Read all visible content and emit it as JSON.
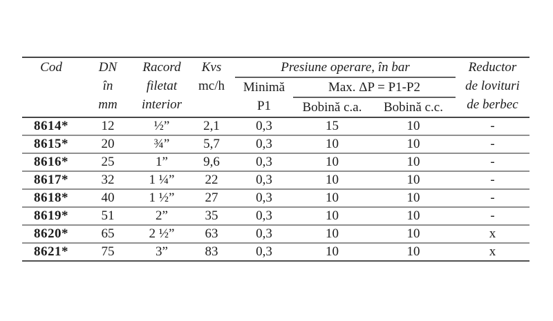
{
  "colors": {
    "text": "#1c1c1c",
    "rule_dark": "#454545",
    "rule_light": "#8f8f8f",
    "background": "#ffffff"
  },
  "table": {
    "header": {
      "cod": "Cod",
      "dn_lines": [
        "DN",
        "în",
        "mm"
      ],
      "racord_lines": [
        "Racord",
        "filetat",
        "interior"
      ],
      "kvs_line1": "Kvs",
      "kvs_line2": "mc/h",
      "presiune_group": "Presiune operare, în bar",
      "minima_line1": "Minimă",
      "minima_line2": "P1",
      "max_group": "Max. ΔP = P1-P2",
      "bobina_ca": "Bobină c.a.",
      "bobina_cc": "Bobină c.c.",
      "reductor_lines": [
        "Reductor",
        "de lovituri",
        "de berbec"
      ]
    },
    "rows": [
      {
        "cod": "8614*",
        "dn": "12",
        "racord": "½”",
        "kvs": "2,1",
        "p1": "0,3",
        "ca": "15",
        "cc": "10",
        "red": "-"
      },
      {
        "cod": "8615*",
        "dn": "20",
        "racord": "¾”",
        "kvs": "5,7",
        "p1": "0,3",
        "ca": "10",
        "cc": "10",
        "red": "-"
      },
      {
        "cod": "8616*",
        "dn": "25",
        "racord": "1”",
        "kvs": "9,6",
        "p1": "0,3",
        "ca": "10",
        "cc": "10",
        "red": "-"
      },
      {
        "cod": "8617*",
        "dn": "32",
        "racord": "1 ¼”",
        "kvs": "22",
        "p1": "0,3",
        "ca": "10",
        "cc": "10",
        "red": "-"
      },
      {
        "cod": "8618*",
        "dn": "40",
        "racord": "1 ½”",
        "kvs": "27",
        "p1": "0,3",
        "ca": "10",
        "cc": "10",
        "red": "-"
      },
      {
        "cod": "8619*",
        "dn": "51",
        "racord": "2”",
        "kvs": "35",
        "p1": "0,3",
        "ca": "10",
        "cc": "10",
        "red": "-"
      },
      {
        "cod": "8620*",
        "dn": "65",
        "racord": "2 ½”",
        "kvs": "63",
        "p1": "0,3",
        "ca": "10",
        "cc": "10",
        "red": "x"
      },
      {
        "cod": "8621*",
        "dn": "75",
        "racord": "3”",
        "kvs": "83",
        "p1": "0,3",
        "ca": "10",
        "cc": "10",
        "red": "x"
      }
    ]
  }
}
